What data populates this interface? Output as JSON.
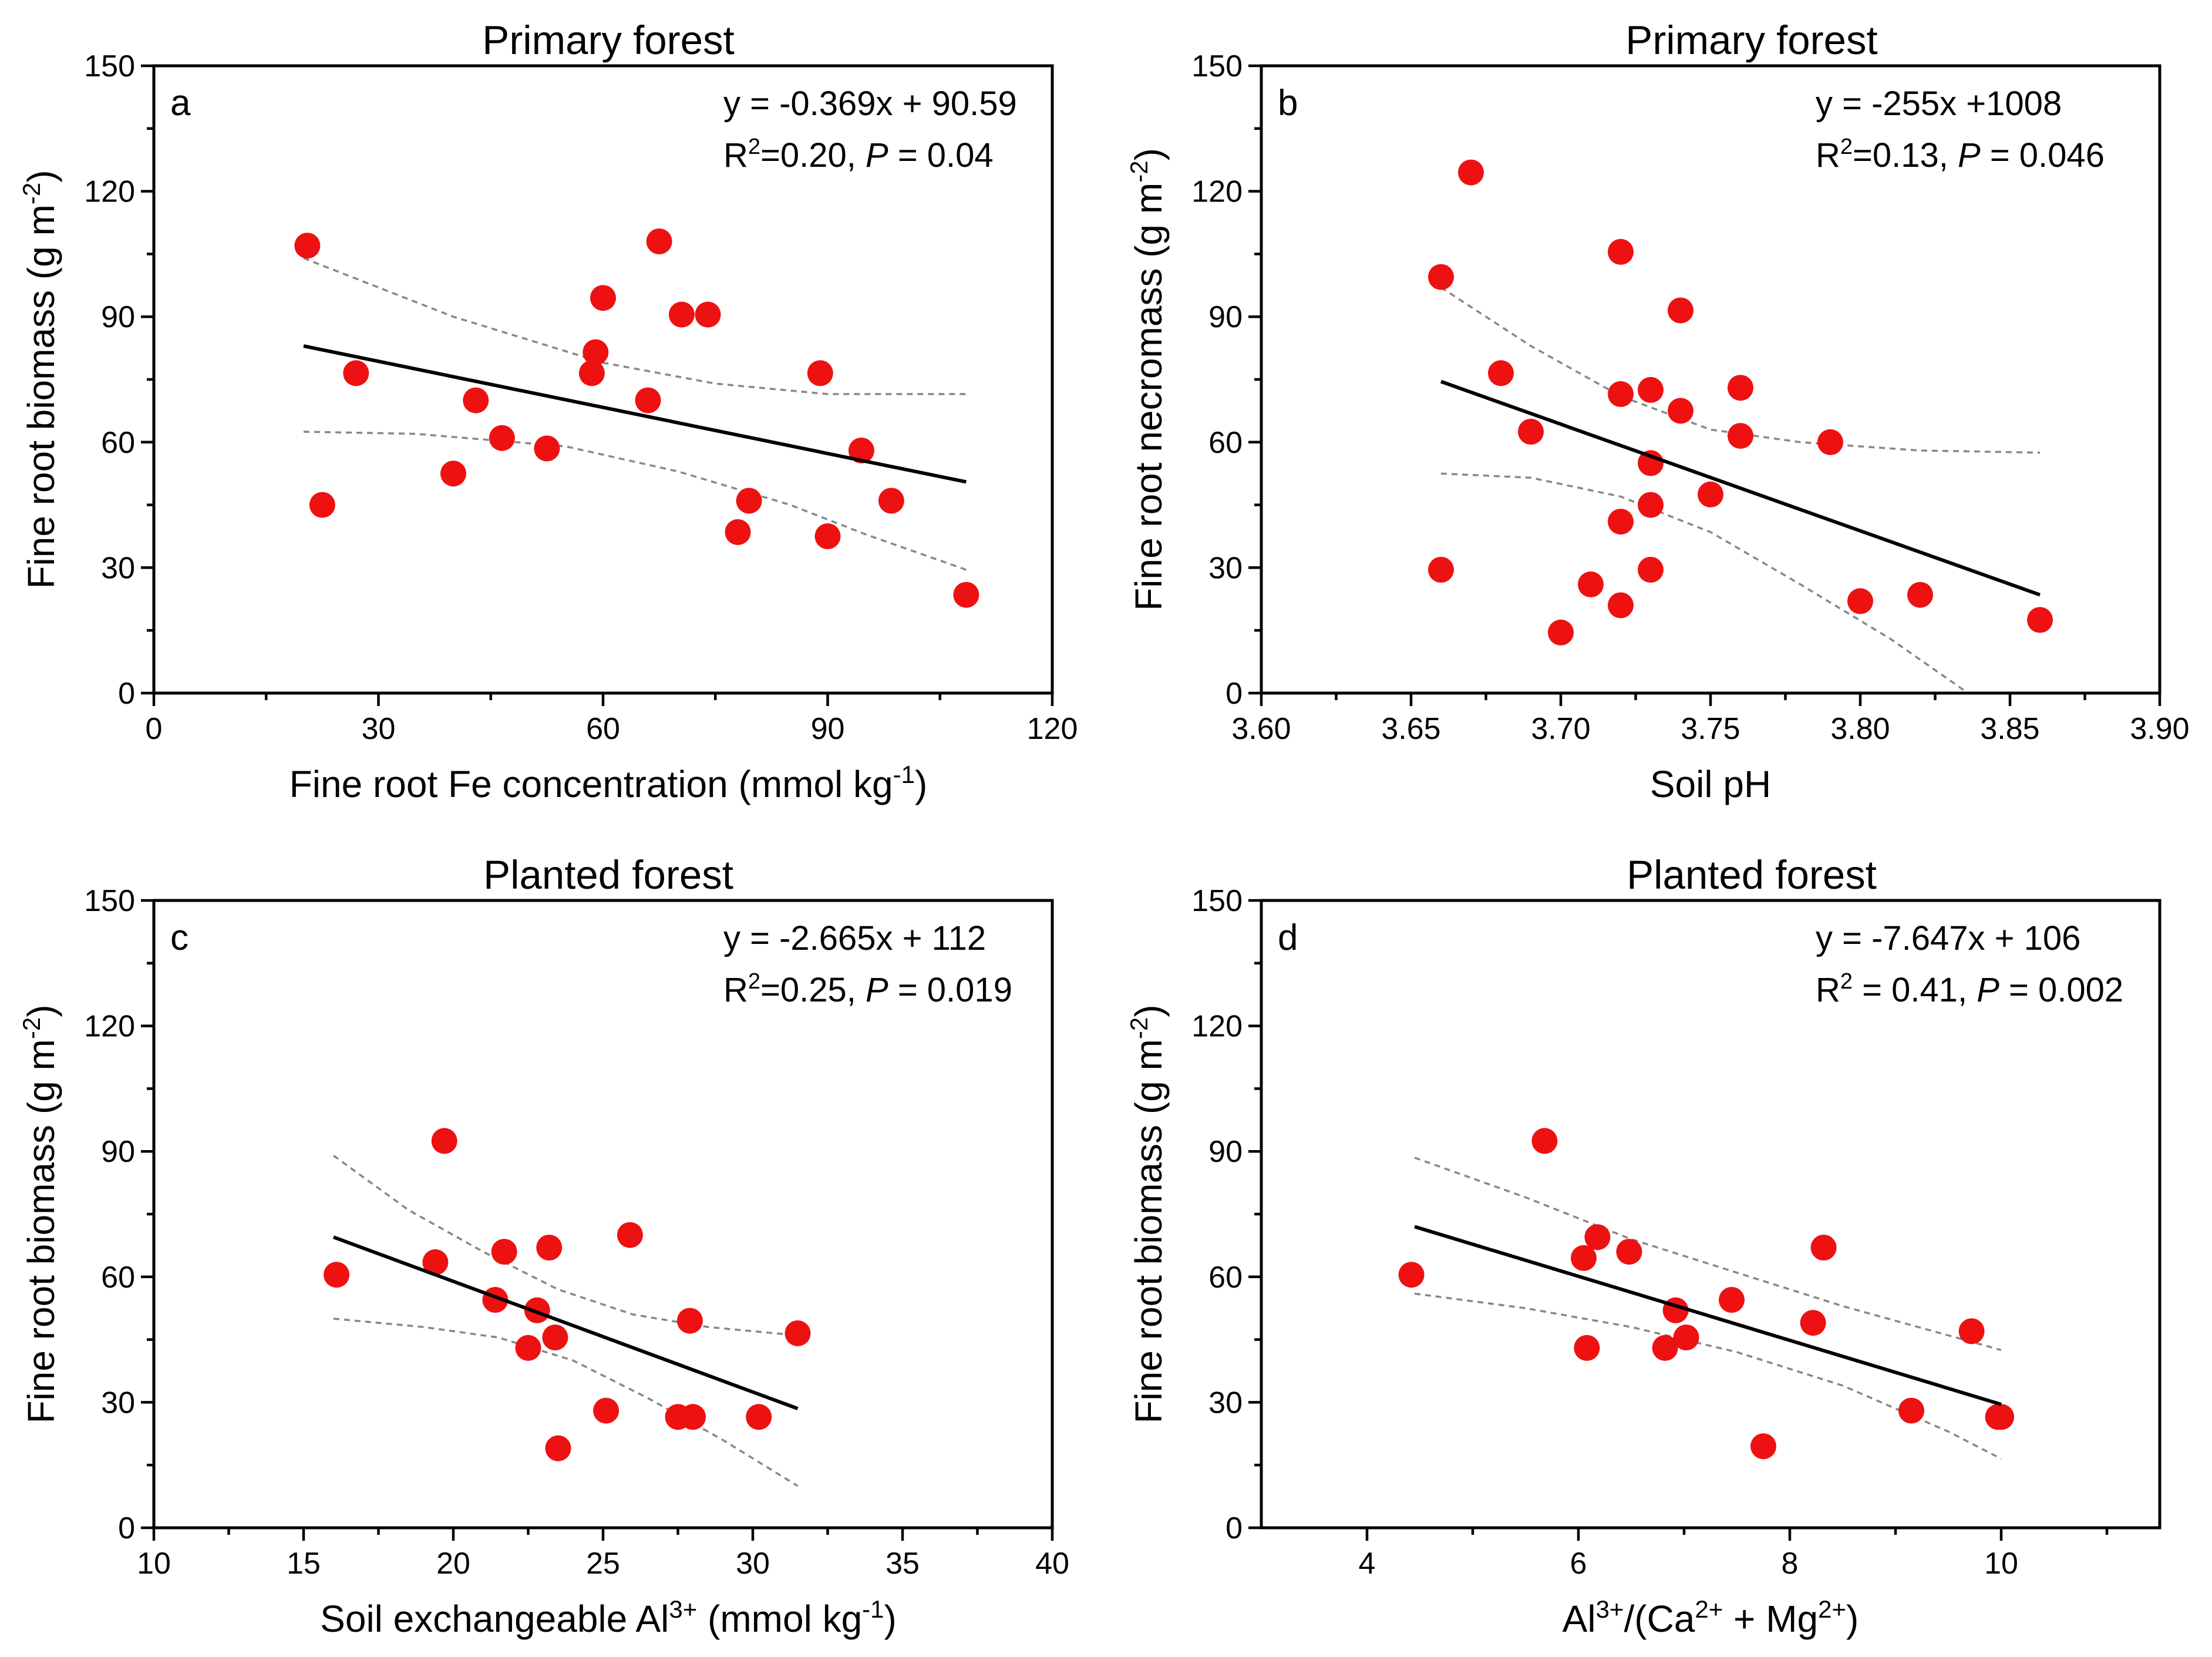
{
  "figure": {
    "background": "#ffffff",
    "point_color": "#ee1111",
    "fit_color": "#000000",
    "ci_color": "#888888"
  },
  "chart_data": [
    {
      "type": "scatter",
      "panel": "a",
      "title": "Primary forest",
      "xlabel": "Fine root Fe concentration (mmol kg",
      "xlabel_sup": "-1",
      "xlabel_post": ")",
      "ylabel": "Fine root biomass (g m",
      "ylabel_sup": "-2",
      "ylabel_post": ")",
      "xlim": [
        0,
        120
      ],
      "ylim": [
        0,
        150
      ],
      "xticks": [
        0,
        30,
        60,
        90,
        120
      ],
      "xtick_labels": [
        "0",
        "30",
        "60",
        "90",
        "120"
      ],
      "yticks": [
        0,
        30,
        60,
        90,
        120,
        150
      ],
      "ytick_labels": [
        "0",
        "30",
        "60",
        "90",
        "120",
        "150"
      ],
      "equation": "y = -0.369x + 90.59",
      "r2_label": "R",
      "r2_sup": "2",
      "r2_value": "=0.20, ",
      "p_label": "P",
      "p_value": " = 0.04",
      "fit": {
        "x0": 20,
        "y0": 83,
        "x1": 108.5,
        "y1": 50.5
      },
      "ci_upper": [
        [
          20,
          104
        ],
        [
          40,
          90
        ],
        [
          60,
          79
        ],
        [
          75,
          74
        ],
        [
          90,
          71.5
        ],
        [
          108.5,
          71.5
        ]
      ],
      "ci_lower": [
        [
          20,
          62.5
        ],
        [
          35,
          62
        ],
        [
          55,
          59
        ],
        [
          70,
          53
        ],
        [
          85,
          45
        ],
        [
          95,
          38
        ],
        [
          108.5,
          29.5
        ]
      ],
      "points": [
        [
          20.5,
          107
        ],
        [
          22.5,
          45
        ],
        [
          27,
          76.5
        ],
        [
          40,
          52.5
        ],
        [
          43,
          70
        ],
        [
          46.5,
          61
        ],
        [
          52.5,
          58.5
        ],
        [
          58.5,
          76.5
        ],
        [
          59,
          81.5
        ],
        [
          60,
          94.5
        ],
        [
          66,
          70
        ],
        [
          67.5,
          108
        ],
        [
          70.5,
          90.5
        ],
        [
          74,
          90.5
        ],
        [
          78,
          38.5
        ],
        [
          79.5,
          46
        ],
        [
          89,
          76.5
        ],
        [
          90,
          37.5
        ],
        [
          94.5,
          58
        ],
        [
          98.5,
          46
        ],
        [
          108.5,
          23.5
        ]
      ]
    },
    {
      "type": "scatter",
      "panel": "b",
      "title": "Primary forest",
      "xlabel": "Soil pH",
      "xlabel_sup": "",
      "xlabel_post": "",
      "ylabel": "Fine root necromass (g m",
      "ylabel_sup": "-2",
      "ylabel_post": ")",
      "xlim": [
        3.6,
        3.9
      ],
      "ylim": [
        0,
        150
      ],
      "xticks": [
        3.6,
        3.65,
        3.7,
        3.75,
        3.8,
        3.85,
        3.9
      ],
      "xtick_labels": [
        "3.60",
        "3.65",
        "3.70",
        "3.75",
        "3.80",
        "3.85",
        "3.90"
      ],
      "yticks": [
        0,
        30,
        60,
        90,
        120,
        150
      ],
      "ytick_labels": [
        "0",
        "30",
        "60",
        "90",
        "120",
        "150"
      ],
      "equation": "y = -255x +1008",
      "r2_label": "R",
      "r2_sup": "2",
      "r2_value": "=0.13, ",
      "p_label": "P",
      "p_value": " = 0.046",
      "fit": {
        "x0": 3.66,
        "y0": 74.5,
        "x1": 3.86,
        "y1": 23.5
      },
      "ci_upper": [
        [
          3.66,
          97
        ],
        [
          3.69,
          83
        ],
        [
          3.72,
          71
        ],
        [
          3.75,
          63
        ],
        [
          3.78,
          60
        ],
        [
          3.82,
          58
        ],
        [
          3.86,
          57.5
        ]
      ],
      "ci_lower": [
        [
          3.66,
          52.5
        ],
        [
          3.69,
          51.5
        ],
        [
          3.72,
          47
        ],
        [
          3.75,
          38.5
        ],
        [
          3.78,
          26
        ],
        [
          3.81,
          13
        ],
        [
          3.836,
          0
        ]
      ],
      "points": [
        [
          3.66,
          99.5
        ],
        [
          3.66,
          29.5
        ],
        [
          3.67,
          124.5
        ],
        [
          3.68,
          76.5
        ],
        [
          3.69,
          62.5
        ],
        [
          3.7,
          14.5
        ],
        [
          3.71,
          26
        ],
        [
          3.72,
          105.5
        ],
        [
          3.72,
          71.5
        ],
        [
          3.72,
          41
        ],
        [
          3.72,
          21
        ],
        [
          3.73,
          72.5
        ],
        [
          3.73,
          55
        ],
        [
          3.73,
          45
        ],
        [
          3.73,
          29.5
        ],
        [
          3.74,
          91.5
        ],
        [
          3.74,
          67.5
        ],
        [
          3.75,
          47.5
        ],
        [
          3.76,
          73
        ],
        [
          3.76,
          61.5
        ],
        [
          3.79,
          60
        ],
        [
          3.8,
          22
        ],
        [
          3.82,
          23.5
        ],
        [
          3.86,
          17.5
        ]
      ]
    },
    {
      "type": "scatter",
      "panel": "c",
      "title": "Planted forest",
      "xlabel": "Soil exchangeable Al",
      "xlabel_sup": "3+",
      "xlabel_post": " (mmol kg",
      "xlabel_sup2": "-1",
      "xlabel_post2": ")",
      "ylabel": "Fine root biomass (g m",
      "ylabel_sup": "-2",
      "ylabel_post": ")",
      "xlim": [
        10,
        40
      ],
      "ylim": [
        0,
        150
      ],
      "xticks": [
        10,
        15,
        20,
        25,
        30,
        35,
        40
      ],
      "xtick_labels": [
        "10",
        "15",
        "20",
        "25",
        "30",
        "35",
        "40"
      ],
      "yticks": [
        0,
        30,
        60,
        90,
        120,
        150
      ],
      "ytick_labels": [
        "0",
        "30",
        "60",
        "90",
        "120",
        "150"
      ],
      "equation": "y = -2.665x + 112",
      "r2_label": "R",
      "r2_sup": "2",
      "r2_value": "=0.25, ",
      "p_label": "P",
      "p_value": " = 0.019",
      "fit": {
        "x0": 16,
        "y0": 69.5,
        "x1": 31.5,
        "y1": 28.5
      },
      "ci_upper": [
        [
          16,
          89
        ],
        [
          18.5,
          76
        ],
        [
          21,
          66
        ],
        [
          23.5,
          57
        ],
        [
          26,
          51
        ],
        [
          28.5,
          48
        ],
        [
          31.5,
          46
        ]
      ],
      "ci_lower": [
        [
          16,
          50
        ],
        [
          19,
          48
        ],
        [
          21.5,
          45.5
        ],
        [
          24,
          40
        ],
        [
          26.5,
          31
        ],
        [
          29,
          21
        ],
        [
          31.5,
          10
        ]
      ],
      "points": [
        [
          16.1,
          60.5
        ],
        [
          19.4,
          63.5
        ],
        [
          19.7,
          92.5
        ],
        [
          21.4,
          54.5
        ],
        [
          21.7,
          66
        ],
        [
          22.5,
          43
        ],
        [
          22.8,
          52
        ],
        [
          23.2,
          67
        ],
        [
          23.4,
          45.5
        ],
        [
          23.5,
          19
        ],
        [
          25.1,
          28
        ],
        [
          25.9,
          70
        ],
        [
          27.5,
          26.5
        ],
        [
          27.9,
          49.5
        ],
        [
          28,
          26.5
        ],
        [
          30.2,
          26.5
        ],
        [
          31.5,
          46.5
        ]
      ]
    },
    {
      "type": "scatter",
      "panel": "d",
      "title": "Planted forest",
      "xlabel": "Al",
      "xlabel_sup": "3+",
      "xlabel_post": "/(Ca",
      "xlabel_sup2": "2+",
      "xlabel_post2": " + Mg",
      "xlabel_sup3": "2+",
      "xlabel_post3": ")",
      "ylabel": "Fine root biomass (g m",
      "ylabel_sup": "-2",
      "ylabel_post": ")",
      "xlim": [
        3,
        11.5
      ],
      "ylim": [
        0,
        150
      ],
      "xticks": [
        4,
        6,
        8,
        10
      ],
      "xtick_labels": [
        "4",
        "6",
        "8",
        "10"
      ],
      "yticks": [
        0,
        30,
        60,
        90,
        120,
        150
      ],
      "ytick_labels": [
        "0",
        "30",
        "60",
        "90",
        "120",
        "150"
      ],
      "equation": "y = -7.647x + 106",
      "r2_label": "R",
      "r2_sup": "2",
      "r2_value": " = 0.41, ",
      "p_label": "P",
      "p_value": " = 0.002",
      "fit": {
        "x0": 4.45,
        "y0": 72,
        "x1": 10,
        "y1": 29.5
      },
      "ci_upper": [
        [
          4.45,
          88.5
        ],
        [
          5.5,
          79
        ],
        [
          6.5,
          69
        ],
        [
          7.5,
          61
        ],
        [
          8.5,
          53
        ],
        [
          9.5,
          46
        ],
        [
          10,
          42.5
        ]
      ],
      "ci_lower": [
        [
          4.45,
          56
        ],
        [
          5.5,
          52.5
        ],
        [
          6.5,
          48
        ],
        [
          7.5,
          42
        ],
        [
          8.5,
          34
        ],
        [
          9.5,
          23
        ],
        [
          10,
          16.5
        ]
      ],
      "points": [
        [
          4.42,
          60.5
        ],
        [
          5.68,
          92.5
        ],
        [
          6.05,
          64.5
        ],
        [
          6.08,
          43
        ],
        [
          6.18,
          69.5
        ],
        [
          6.48,
          66
        ],
        [
          6.82,
          43
        ],
        [
          6.92,
          52
        ],
        [
          7.02,
          45.5
        ],
        [
          7.45,
          54.5
        ],
        [
          7.75,
          19.5
        ],
        [
          8.22,
          49
        ],
        [
          8.32,
          67
        ],
        [
          9.15,
          28
        ],
        [
          9.72,
          47
        ],
        [
          9.97,
          26.5
        ],
        [
          10.0,
          26.5
        ]
      ]
    }
  ]
}
